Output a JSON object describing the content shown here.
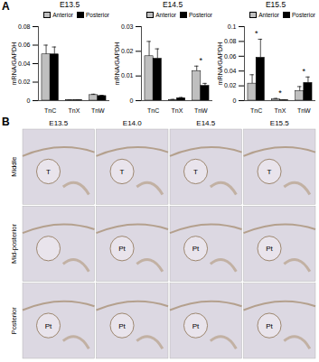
{
  "chart_data": [
    {
      "type": "bar",
      "title": "E13.5",
      "categories": [
        "TnC",
        "TnX",
        "TnW"
      ],
      "series": [
        {
          "name": "Anterior",
          "color": "#bfbfbf",
          "values": [
            0.05,
            0.0005,
            0.006
          ],
          "errors": [
            0.01,
            0.0002,
            0.001
          ]
        },
        {
          "name": "Posterior",
          "color": "#000000",
          "values": [
            0.05,
            0.0005,
            0.005
          ],
          "errors": [
            0.008,
            0.0002,
            0.0008
          ]
        }
      ],
      "ylabel": "mRNA/GAPDH",
      "ylim": [
        0,
        0.08
      ],
      "yticks": [
        0,
        0.02,
        0.04,
        0.06,
        0.08
      ],
      "legend": "upper right",
      "annotations": []
    },
    {
      "type": "bar",
      "title": "E14.5",
      "categories": [
        "TnC",
        "TnX",
        "TnW"
      ],
      "series": [
        {
          "name": "Anterior",
          "color": "#bfbfbf",
          "values": [
            0.018,
            0.0003,
            0.012
          ],
          "errors": [
            0.006,
            0.0002,
            0.002
          ]
        },
        {
          "name": "Posterior",
          "color": "#000000",
          "values": [
            0.017,
            0.001,
            0.006
          ],
          "errors": [
            0.004,
            0.0003,
            0.001
          ]
        }
      ],
      "ylabel": "mRNA/GAPDH",
      "ylim": [
        0,
        0.03
      ],
      "yticks": [
        0,
        0.01,
        0.02,
        0.03
      ],
      "legend": "upper right",
      "annotations": [
        {
          "category": "TnW",
          "text": "*"
        }
      ]
    },
    {
      "type": "bar",
      "title": "E15.5",
      "categories": [
        "TnC",
        "TnX",
        "TnW"
      ],
      "series": [
        {
          "name": "Anterior",
          "color": "#bfbfbf",
          "values": [
            0.023,
            0.002,
            0.013
          ],
          "errors": [
            0.012,
            0.001,
            0.006
          ]
        },
        {
          "name": "Posterior",
          "color": "#000000",
          "values": [
            0.058,
            0.0005,
            0.024
          ],
          "errors": [
            0.025,
            0.0003,
            0.008
          ]
        }
      ],
      "ylabel": "mRNA/GAPDH",
      "ylim": [
        0,
        0.1
      ],
      "yticks": [
        0,
        0.02,
        0.04,
        0.06,
        0.08,
        0.1
      ],
      "legend": "upper right",
      "annotations": [
        {
          "category": "TnC",
          "text": "*"
        },
        {
          "category": "TnX",
          "text": "*"
        },
        {
          "category": "TnW",
          "text": "*"
        }
      ]
    }
  ],
  "panel_labels": [
    "A",
    "B"
  ],
  "histology": {
    "columns": [
      "E13.5",
      "E14.0",
      "E14.5",
      "E15.5"
    ],
    "rows": [
      "Middle",
      "Mid-posterior",
      "Posterior"
    ],
    "labels": [
      [
        "T",
        "T",
        "T",
        "T"
      ],
      [
        null,
        "Pt",
        "Pt",
        "Pt"
      ],
      [
        "Pt",
        "Pt",
        "Pt",
        "Pt"
      ]
    ]
  }
}
